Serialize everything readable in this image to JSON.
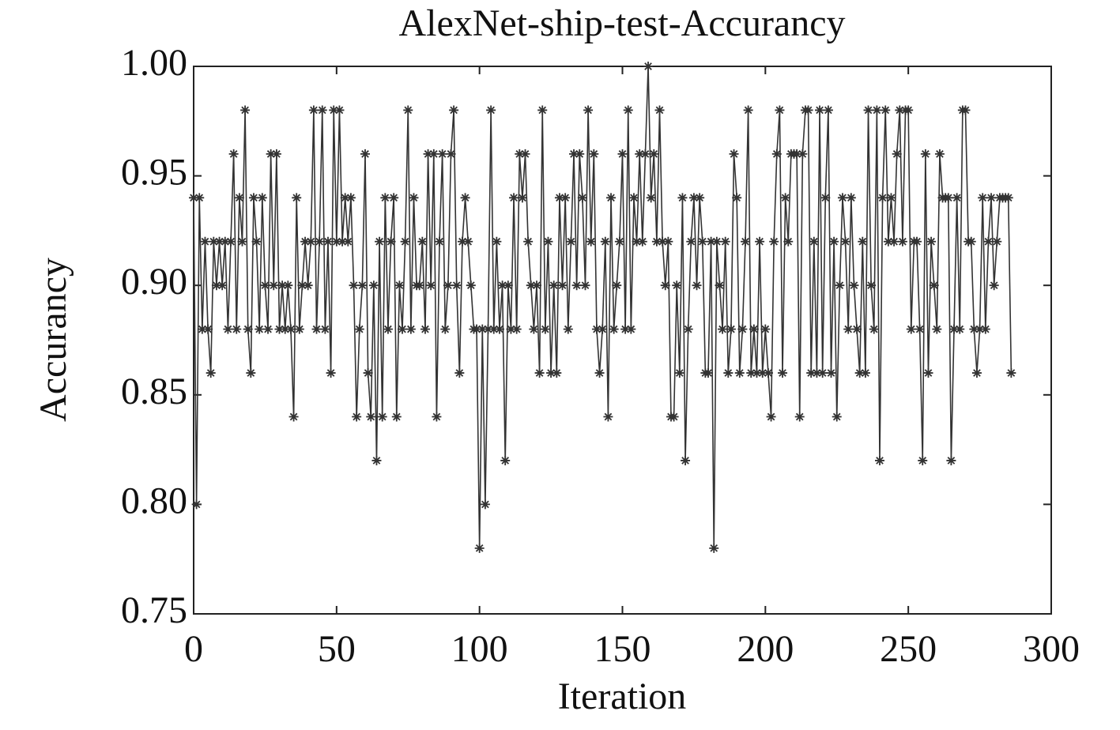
{
  "chart_data": {
    "type": "line",
    "title": "AlexNet-ship-test-Accurancy",
    "xlabel": "Iteration",
    "ylabel": "Accurancy",
    "x": [
      0,
      1,
      2,
      3,
      4,
      5,
      6,
      7,
      8,
      9,
      10,
      11,
      12,
      13,
      14,
      15,
      16,
      17,
      18,
      19,
      20,
      21,
      22,
      23,
      24,
      25,
      26,
      27,
      28,
      29,
      30,
      31,
      32,
      33,
      34,
      35,
      36,
      37,
      38,
      39,
      40,
      41,
      42,
      43,
      44,
      45,
      46,
      47,
      48,
      49,
      50,
      51,
      52,
      53,
      54,
      55,
      56,
      57,
      58,
      59,
      60,
      61,
      62,
      63,
      64,
      65,
      66,
      67,
      68,
      69,
      70,
      71,
      72,
      73,
      74,
      75,
      76,
      77,
      78,
      79,
      80,
      81,
      82,
      83,
      84,
      85,
      86,
      87,
      88,
      89,
      90,
      91,
      92,
      93,
      94,
      95,
      96,
      97,
      98,
      99,
      100,
      101,
      102,
      103,
      104,
      105,
      106,
      107,
      108,
      109,
      110,
      111,
      112,
      113,
      114,
      115,
      116,
      117,
      118,
      119,
      120,
      121,
      122,
      123,
      124,
      125,
      126,
      127,
      128,
      129,
      130,
      131,
      132,
      133,
      134,
      135,
      136,
      137,
      138,
      139,
      140,
      141,
      142,
      143,
      144,
      145,
      146,
      147,
      148,
      149,
      150,
      151,
      152,
      153,
      154,
      155,
      156,
      157,
      158,
      159,
      160,
      161,
      162,
      163,
      164,
      165,
      166,
      167,
      168,
      169,
      170,
      171,
      172,
      173,
      174,
      175,
      176,
      177,
      178,
      179,
      180,
      181,
      182,
      183,
      184,
      185,
      186,
      187,
      188,
      189,
      190,
      191,
      192,
      193,
      194,
      195,
      196,
      197,
      198,
      199,
      200,
      201,
      202,
      203,
      204,
      205,
      206,
      207,
      208,
      209,
      210,
      211,
      212,
      213,
      214,
      215,
      216,
      217,
      218,
      219,
      220,
      221,
      222,
      223,
      224,
      225,
      226,
      227,
      228,
      229,
      230,
      231,
      232,
      233,
      234,
      235,
      236,
      237,
      238,
      239,
      240,
      241,
      242,
      243,
      244,
      245,
      246,
      247,
      248,
      249,
      250,
      251,
      252,
      253,
      254,
      255,
      256,
      257,
      258,
      259,
      260,
      261,
      262,
      263,
      264,
      265,
      266,
      267,
      268,
      269,
      270,
      271,
      272,
      273,
      274,
      275,
      276,
      277,
      278,
      279,
      280,
      281,
      282,
      283,
      284,
      285,
      286
    ],
    "values": [
      0.94,
      0.8,
      0.94,
      0.88,
      0.92,
      0.88,
      0.86,
      0.92,
      0.9,
      0.92,
      0.9,
      0.92,
      0.88,
      0.92,
      0.96,
      0.88,
      0.94,
      0.92,
      0.98,
      0.88,
      0.86,
      0.94,
      0.92,
      0.88,
      0.94,
      0.9,
      0.88,
      0.96,
      0.9,
      0.96,
      0.88,
      0.9,
      0.88,
      0.9,
      0.88,
      0.84,
      0.94,
      0.88,
      0.9,
      0.92,
      0.9,
      0.92,
      0.98,
      0.88,
      0.92,
      0.98,
      0.88,
      0.92,
      0.86,
      0.98,
      0.92,
      0.98,
      0.92,
      0.94,
      0.92,
      0.94,
      0.9,
      0.84,
      0.88,
      0.9,
      0.96,
      0.86,
      0.84,
      0.9,
      0.82,
      0.92,
      0.84,
      0.94,
      0.88,
      0.92,
      0.94,
      0.84,
      0.9,
      0.88,
      0.92,
      0.98,
      0.88,
      0.94,
      0.9,
      0.9,
      0.92,
      0.88,
      0.96,
      0.9,
      0.96,
      0.84,
      0.92,
      0.96,
      0.88,
      0.9,
      0.96,
      0.98,
      0.9,
      0.86,
      0.92,
      0.94,
      0.92,
      0.9,
      0.88,
      0.88,
      0.78,
      0.88,
      0.8,
      0.88,
      0.98,
      0.88,
      0.92,
      0.88,
      0.9,
      0.82,
      0.9,
      0.88,
      0.94,
      0.88,
      0.96,
      0.94,
      0.96,
      0.92,
      0.9,
      0.88,
      0.9,
      0.86,
      0.98,
      0.88,
      0.92,
      0.86,
      0.9,
      0.86,
      0.94,
      0.9,
      0.94,
      0.88,
      0.92,
      0.96,
      0.9,
      0.96,
      0.94,
      0.9,
      0.98,
      0.92,
      0.96,
      0.88,
      0.86,
      0.88,
      0.92,
      0.84,
      0.94,
      0.88,
      0.9,
      0.92,
      0.96,
      0.88,
      0.98,
      0.88,
      0.94,
      0.92,
      0.96,
      0.92,
      0.96,
      1.0,
      0.94,
      0.96,
      0.92,
      0.98,
      0.92,
      0.9,
      0.92,
      0.84,
      0.84,
      0.9,
      0.86,
      0.94,
      0.82,
      0.88,
      0.92,
      0.94,
      0.9,
      0.94,
      0.92,
      0.86,
      0.86,
      0.92,
      0.78,
      0.92,
      0.9,
      0.88,
      0.92,
      0.86,
      0.88,
      0.96,
      0.94,
      0.86,
      0.88,
      0.92,
      0.98,
      0.86,
      0.88,
      0.86,
      0.92,
      0.86,
      0.88,
      0.86,
      0.84,
      0.92,
      0.96,
      0.98,
      0.86,
      0.94,
      0.92,
      0.96,
      0.96,
      0.96,
      0.84,
      0.96,
      0.98,
      0.98,
      0.86,
      0.92,
      0.86,
      0.98,
      0.86,
      0.94,
      0.98,
      0.86,
      0.92,
      0.84,
      0.9,
      0.94,
      0.92,
      0.88,
      0.94,
      0.9,
      0.88,
      0.86,
      0.92,
      0.86,
      0.98,
      0.9,
      0.88,
      0.98,
      0.82,
      0.94,
      0.98,
      0.92,
      0.94,
      0.92,
      0.96,
      0.98,
      0.92,
      0.98,
      0.98,
      0.88,
      0.92,
      0.92,
      0.88,
      0.82,
      0.96,
      0.86,
      0.92,
      0.9,
      0.88,
      0.96,
      0.94,
      0.94,
      0.94,
      0.82,
      0.88,
      0.94,
      0.88,
      0.98,
      0.98,
      0.92,
      0.92,
      0.88,
      0.86,
      0.88,
      0.94,
      0.88,
      0.92,
      0.94,
      0.9,
      0.92,
      0.94,
      0.94,
      0.94,
      0.94,
      0.86
    ],
    "color": "#333333",
    "xlim": [
      0,
      300
    ],
    "xticks": [
      0,
      50,
      100,
      150,
      200,
      250,
      300
    ],
    "ylim": [
      0.75,
      1.0
    ],
    "yticks": [
      0.75,
      {
        "value": 0.8,
        "label": "0.80"
      },
      0.85,
      {
        "value": 0.9,
        "label": "0.90"
      },
      0.95,
      {
        "value": 1.0,
        "label": "1.00"
      }
    ],
    "grid": false
  }
}
